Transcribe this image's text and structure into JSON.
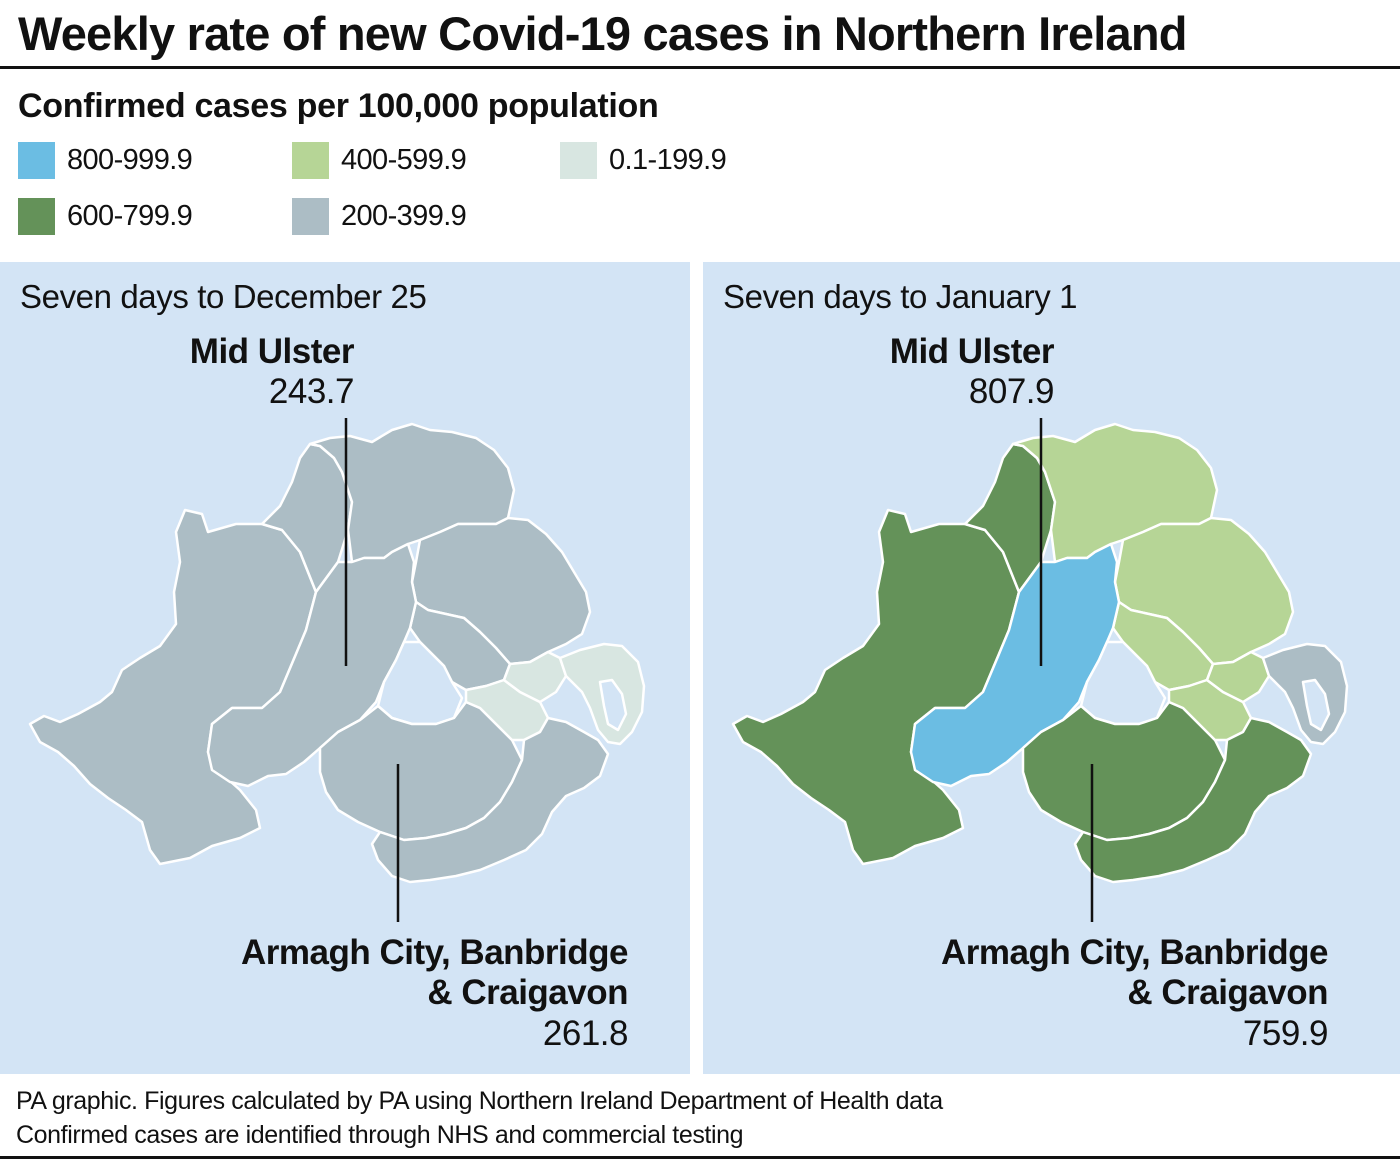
{
  "title": "Weekly rate of new Covid-19 cases in Northern Ireland",
  "subtitle": "Confirmed cases per 100,000 population",
  "colors": {
    "band_800_999": "#6bbde3",
    "band_600_799": "#649259",
    "band_400_599": "#b6d596",
    "band_200_399": "#acbdc5",
    "band_0_199": "#d8e6e1",
    "sea": "#d3e4f5",
    "border": "#ffffff",
    "leader": "#111111"
  },
  "legend": [
    {
      "label": "800-999.9",
      "color": "#6bbde3"
    },
    {
      "label": "600-799.9",
      "color": "#649259"
    },
    {
      "label": "400-599.9",
      "color": "#b6d596"
    },
    {
      "label": "200-399.9",
      "color": "#acbdc5"
    },
    {
      "label": "0.1-199.9",
      "color": "#d8e6e1"
    }
  ],
  "maps": [
    {
      "caption": "Seven days to December 25",
      "callouts": {
        "mid_ulster": {
          "name": "Mid Ulster",
          "value": "243.7"
        },
        "abc": {
          "name_line1": "Armagh City, Banbridge",
          "name_line2": "& Craigavon",
          "value": "261.8"
        }
      },
      "districts": {
        "derry_strabane": "#acbdc5",
        "causeway": "#acbdc5",
        "mid_east_antrim": "#acbdc5",
        "antrim_newtownabbey": "#acbdc5",
        "belfast": "#d8e6e1",
        "lisburn_castlereagh": "#d8e6e1",
        "ards_north_down": "#d8e6e1",
        "mid_ulster": "#acbdc5",
        "fermanagh_omagh": "#acbdc5",
        "armagh_banbridge_craigavon": "#acbdc5",
        "newry_mourne_down": "#acbdc5"
      }
    },
    {
      "caption": "Seven days to January 1",
      "callouts": {
        "mid_ulster": {
          "name": "Mid Ulster",
          "value": "807.9"
        },
        "abc": {
          "name_line1": "Armagh City, Banbridge",
          "name_line2": "& Craigavon",
          "value": "759.9"
        }
      },
      "districts": {
        "derry_strabane": "#649259",
        "causeway": "#b6d596",
        "mid_east_antrim": "#b6d596",
        "antrim_newtownabbey": "#b6d596",
        "belfast": "#b6d596",
        "lisburn_castlereagh": "#b6d596",
        "ards_north_down": "#acbdc5",
        "mid_ulster": "#6bbde3",
        "fermanagh_omagh": "#649259",
        "armagh_banbridge_craigavon": "#649259",
        "newry_mourne_down": "#649259"
      }
    }
  ],
  "footer": {
    "line1": "PA graphic. Figures calculated by PA using Northern Ireland Department of Health data",
    "line2": "Confirmed cases are identified through NHS and commercial testing"
  }
}
